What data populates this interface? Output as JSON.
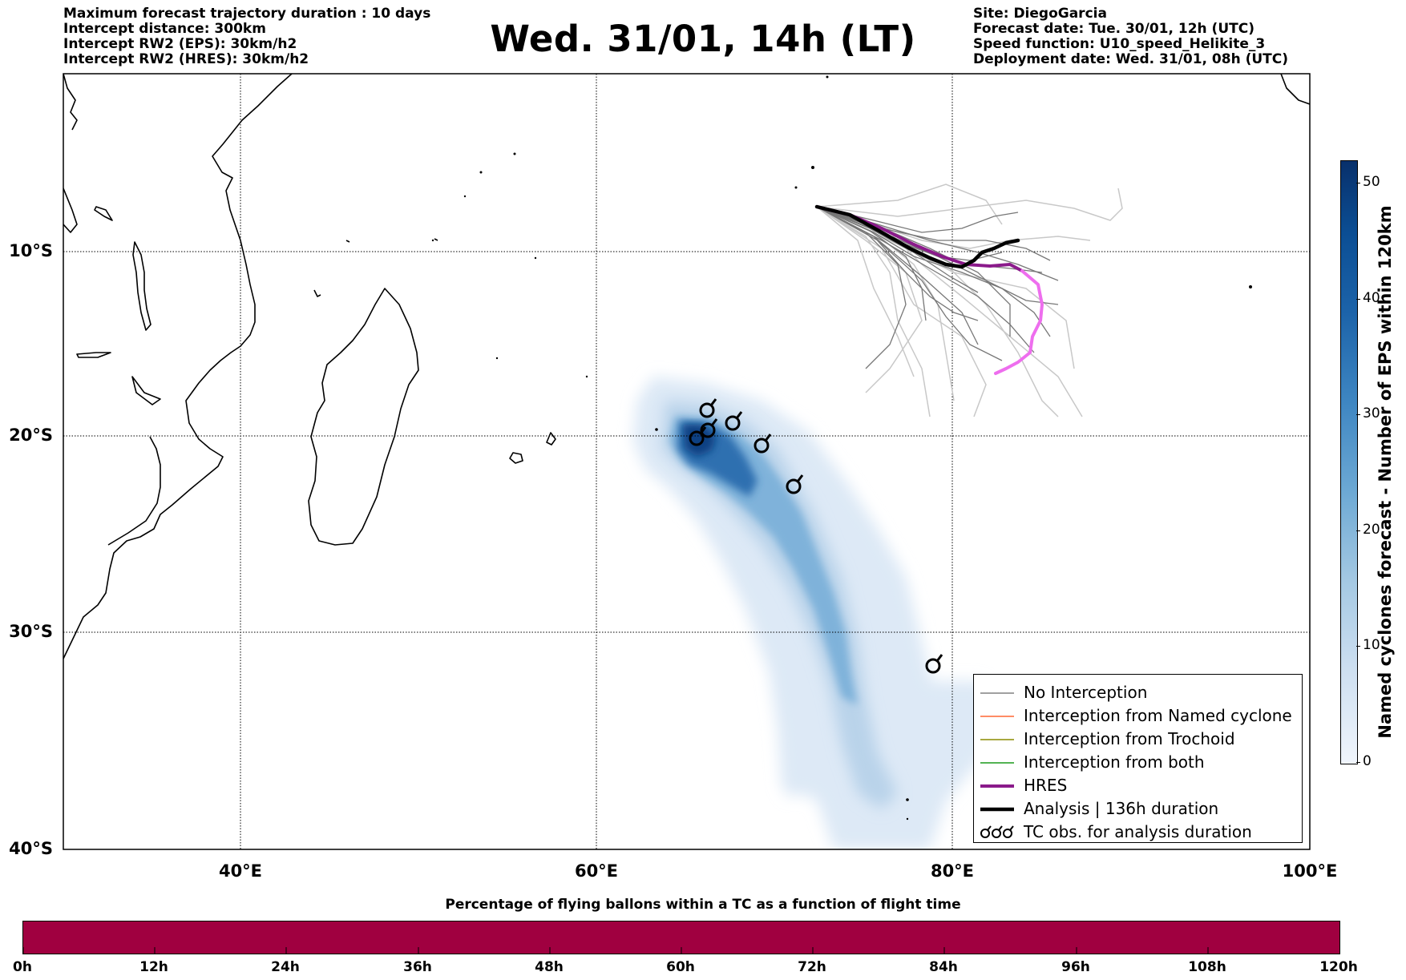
{
  "header": {
    "left_lines": [
      "Maximum forecast trajectory duration : 10 days",
      "Intercept distance: 300km",
      "Intercept RW2 (EPS):  30km/h2",
      "Intercept RW2 (HRES): 30km/h2"
    ],
    "title": "Wed. 31/01, 14h (LT)",
    "right_lines": [
      "Site: DiegoGarcia",
      "Forecast date: Tue. 30/01, 12h (UTC)",
      "Speed function: U10_speed_Helikite_3",
      "Deployment date: Wed. 31/01, 08h (UTC)"
    ]
  },
  "map": {
    "extent": {
      "lon_min": 30,
      "lon_max": 100,
      "lat_min": -40,
      "lat_max": 0
    },
    "lat_labels": [
      "10°S",
      "20°S",
      "30°S",
      "40°S"
    ],
    "lon_labels": [
      "40°E",
      "60°E",
      "80°E",
      "100°E"
    ],
    "colors": {
      "hres": "#8b1a8b",
      "hres_forecast": "#ee6eee",
      "analysis": "#000000",
      "no_interception": "#808080",
      "eps_light": "#c8c8c8",
      "named_cyclone": "#ff6633",
      "trochoid": "#8b8b00",
      "both": "#1a9a1a"
    }
  },
  "legend": {
    "items": [
      {
        "label": "No Interception",
        "symbol": "line",
        "color": "#808080"
      },
      {
        "label": "Interception from Named cyclone",
        "symbol": "line",
        "color": "#ff6633"
      },
      {
        "label": "Interception from Trochoid",
        "symbol": "line",
        "color": "#8b8b00"
      },
      {
        "label": "Interception from both",
        "symbol": "line",
        "color": "#1a9a1a"
      },
      {
        "label": "HRES",
        "symbol": "thick-line",
        "color": "#8b1a8b"
      },
      {
        "label": "Analysis | 136h duration",
        "symbol": "thick-line",
        "color": "#000000"
      },
      {
        "label": "TC obs. for analysis duration",
        "symbol": "cyclone-icon",
        "color": "#000000"
      }
    ]
  },
  "colorbar_vertical": {
    "label": "Named cyclones forecast - Number of EPS within 120km",
    "ticks": [
      "0",
      "10",
      "20",
      "30",
      "40",
      "50"
    ],
    "min": 0,
    "max": 52
  },
  "colorbar_horizontal": {
    "title": "Percentage of flying ballons within a TC as a function of flight time",
    "ticks": [
      "0h",
      "12h",
      "24h",
      "36h",
      "48h",
      "60h",
      "72h",
      "84h",
      "96h",
      "108h",
      "120h"
    ],
    "fill_color": "#a00040"
  }
}
